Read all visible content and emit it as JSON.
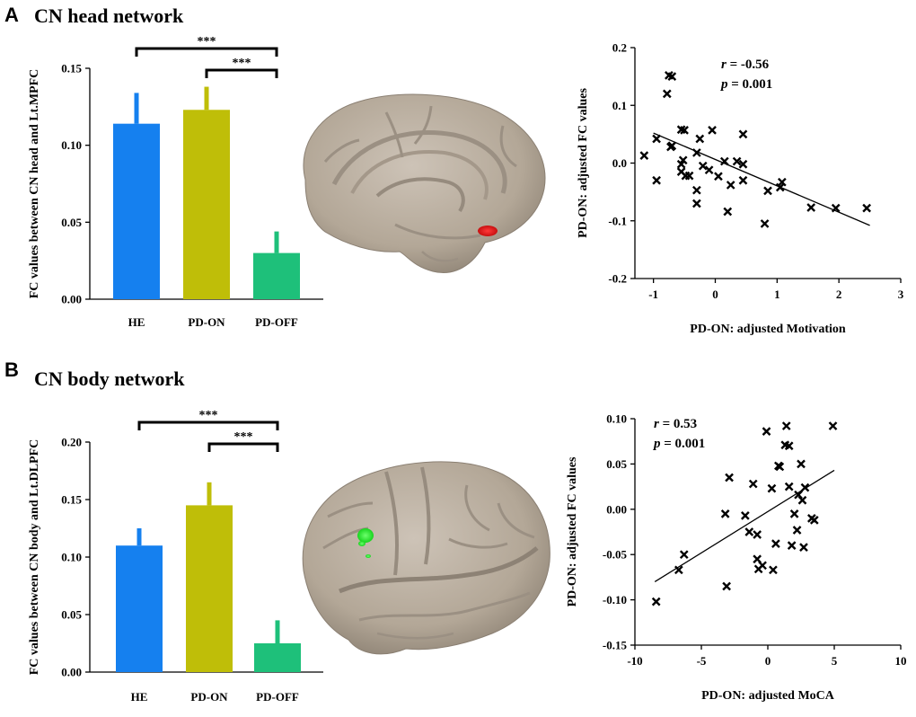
{
  "panels": [
    {
      "letter": "A",
      "title": "CN head network",
      "brain_view": "medial",
      "roi_color": "#e8191e",
      "bar": {
        "type": "bar",
        "categories": [
          "HE",
          "PD-ON",
          "PD-OFF"
        ],
        "values": [
          0.114,
          0.123,
          0.03
        ],
        "errors": [
          0.02,
          0.015,
          0.014
        ],
        "colors": [
          "#1580ef",
          "#bfbe08",
          "#1ec07a"
        ],
        "ylabel": "FC values between CN head and Lt.MPFC",
        "ylim": [
          0,
          0.15
        ],
        "yticks": [
          0.0,
          0.05,
          0.1,
          0.15
        ],
        "ytick_labels": [
          "0.00",
          "0.05",
          "0.10",
          "0.15"
        ],
        "significance": [
          {
            "from": "HE",
            "to": "PD-OFF",
            "label": "***"
          },
          {
            "from": "PD-ON",
            "to": "PD-OFF",
            "label": "***"
          }
        ]
      },
      "scatter": {
        "type": "scatter",
        "xlabel": "PD-ON: adjusted Motivation",
        "ylabel": "PD-ON: adjusted FC values",
        "xlim": [
          -1.3,
          3.0
        ],
        "ylim": [
          -0.2,
          0.2
        ],
        "xticks": [
          -1,
          0,
          1,
          2,
          3
        ],
        "xtick_labels": [
          "-1",
          "0",
          "1",
          "2",
          "3"
        ],
        "yticks": [
          -0.2,
          -0.1,
          0.0,
          0.1,
          0.2
        ],
        "ytick_labels": [
          "-0.2",
          "-0.1",
          "0.0",
          "0.1",
          "0.2"
        ],
        "r_label": "r",
        "r_value": " = -0.56",
        "p_label": "p",
        "p_value": " = 0.001",
        "fit": {
          "x": [
            -1.0,
            2.5
          ],
          "y": [
            0.052,
            -0.108
          ]
        },
        "points": [
          [
            -0.7,
            0.15
          ],
          [
            -0.75,
            0.152
          ],
          [
            -0.78,
            0.12
          ],
          [
            -0.55,
            0.058
          ],
          [
            -0.5,
            0.057
          ],
          [
            -0.05,
            0.057
          ],
          [
            0.45,
            0.05
          ],
          [
            -0.95,
            0.042
          ],
          [
            -0.25,
            0.042
          ],
          [
            -0.7,
            0.03
          ],
          [
            -0.72,
            0.028
          ],
          [
            -0.55,
            -0.002
          ],
          [
            -0.52,
            0.005
          ],
          [
            -0.55,
            -0.015
          ],
          [
            -0.48,
            -0.022
          ],
          [
            -0.42,
            -0.022
          ],
          [
            -0.3,
            0.018
          ],
          [
            -0.2,
            -0.005
          ],
          [
            -0.1,
            -0.012
          ],
          [
            0.15,
            0.003
          ],
          [
            0.35,
            0.003
          ],
          [
            0.45,
            -0.002
          ],
          [
            0.45,
            -0.03
          ],
          [
            0.25,
            -0.038
          ],
          [
            0.05,
            -0.023
          ],
          [
            -1.15,
            0.013
          ],
          [
            -0.95,
            -0.03
          ],
          [
            -0.3,
            -0.047
          ],
          [
            -0.3,
            -0.07
          ],
          [
            0.2,
            -0.084
          ],
          [
            0.85,
            -0.048
          ],
          [
            1.05,
            -0.042
          ],
          [
            1.08,
            -0.033
          ],
          [
            0.8,
            -0.105
          ],
          [
            1.55,
            -0.077
          ],
          [
            1.95,
            -0.078
          ],
          [
            2.45,
            -0.078
          ]
        ]
      }
    },
    {
      "letter": "B",
      "title": "CN body network",
      "brain_view": "lateral",
      "roi_color": "#22e02a",
      "bar": {
        "type": "bar",
        "categories": [
          "HE",
          "PD-ON",
          "PD-OFF"
        ],
        "values": [
          0.11,
          0.145,
          0.025
        ],
        "errors": [
          0.015,
          0.02,
          0.02
        ],
        "colors": [
          "#1580ef",
          "#bfbe08",
          "#1ec07a"
        ],
        "ylabel": "FC values between CN body and Lt.DLPFC",
        "ylim": [
          0,
          0.2
        ],
        "yticks": [
          0.0,
          0.05,
          0.1,
          0.15,
          0.2
        ],
        "ytick_labels": [
          "0.00",
          "0.05",
          "0.10",
          "0.15",
          "0.20"
        ],
        "significance": [
          {
            "from": "HE",
            "to": "PD-OFF",
            "label": "***"
          },
          {
            "from": "PD-ON",
            "to": "PD-OFF",
            "label": "***"
          }
        ]
      },
      "scatter": {
        "type": "scatter",
        "xlabel": "PD-ON: adjusted MoCA",
        "ylabel": "PD-ON: adjusted FC values",
        "xlim": [
          -10,
          10
        ],
        "ylim": [
          -0.15,
          0.1
        ],
        "xticks": [
          -10,
          -5,
          0,
          5,
          10
        ],
        "xtick_labels": [
          "-10",
          "-5",
          "0",
          "5",
          "10"
        ],
        "yticks": [
          -0.15,
          -0.1,
          -0.05,
          0.0,
          0.05,
          0.1
        ],
        "ytick_labels": [
          "-0.15",
          "-0.10",
          "-0.05",
          "0.00",
          "0.05",
          "0.10"
        ],
        "r_label": "r",
        "r_value": " = 0.53",
        "p_label": "p",
        "p_value": " = 0.001",
        "fit": {
          "x": [
            -8.5,
            5.0
          ],
          "y": [
            -0.08,
            0.043
          ]
        },
        "points": [
          [
            -0.1,
            0.086
          ],
          [
            1.4,
            0.092
          ],
          [
            4.9,
            0.092
          ],
          [
            1.3,
            0.071
          ],
          [
            1.6,
            0.07
          ],
          [
            0.8,
            0.048
          ],
          [
            0.9,
            0.047
          ],
          [
            2.5,
            0.05
          ],
          [
            -2.9,
            0.035
          ],
          [
            -1.1,
            0.028
          ],
          [
            0.3,
            0.023
          ],
          [
            1.6,
            0.025
          ],
          [
            2.8,
            0.024
          ],
          [
            2.3,
            0.016
          ],
          [
            2.6,
            0.01
          ],
          [
            2.0,
            -0.005
          ],
          [
            3.3,
            -0.01
          ],
          [
            3.5,
            -0.012
          ],
          [
            -3.2,
            -0.005
          ],
          [
            -1.7,
            -0.007
          ],
          [
            -1.4,
            -0.025
          ],
          [
            -0.8,
            -0.028
          ],
          [
            2.2,
            -0.023
          ],
          [
            -0.8,
            -0.055
          ],
          [
            0.6,
            -0.038
          ],
          [
            1.8,
            -0.04
          ],
          [
            2.7,
            -0.042
          ],
          [
            -0.4,
            -0.062
          ],
          [
            -0.7,
            -0.066
          ],
          [
            0.4,
            -0.067
          ],
          [
            -6.3,
            -0.05
          ],
          [
            -6.7,
            -0.067
          ],
          [
            -3.1,
            -0.085
          ],
          [
            -8.4,
            -0.102
          ]
        ]
      }
    }
  ]
}
